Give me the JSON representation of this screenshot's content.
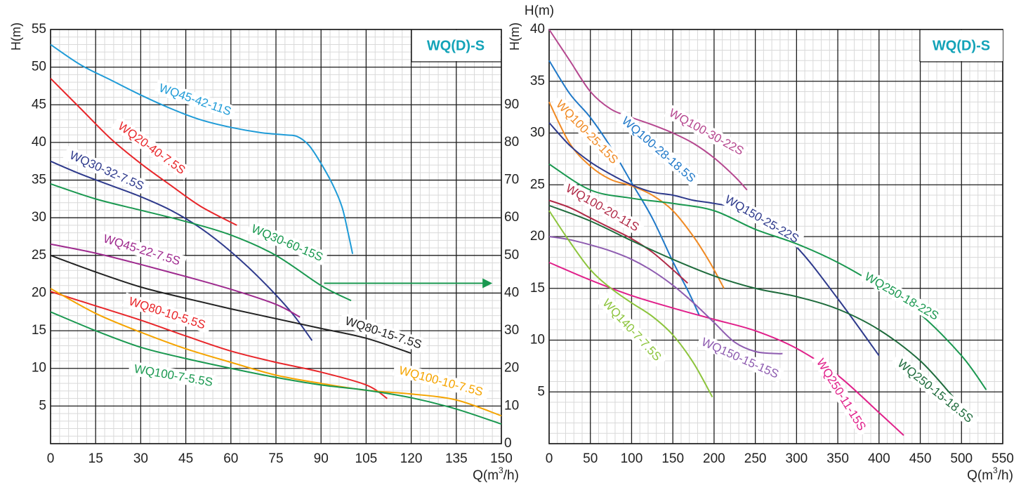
{
  "chart_data": [
    {
      "type": "line",
      "title": "WQ(D)-S",
      "ylabel": "H(m)",
      "xlabel": "Q(m³/h)",
      "xlabel_base": "Q(m",
      "xlabel_sup": "3",
      "xlabel_tail": "/h)",
      "xlim": [
        0,
        150
      ],
      "ylim": [
        0,
        55
      ],
      "x_ticks": [
        0,
        15,
        30,
        45,
        60,
        75,
        90,
        105,
        120,
        135,
        150
      ],
      "y_ticks": [
        5,
        10,
        15,
        20,
        25,
        30,
        35,
        40,
        45,
        50,
        55
      ],
      "secondary_y": {
        "ylim": [
          0,
          110
        ],
        "ticks": [
          0,
          10,
          20,
          30,
          40,
          50,
          60,
          70,
          80,
          90
        ]
      },
      "grid": true,
      "annotation_arrow": {
        "from": [
          91,
          21.3
        ],
        "to": [
          147,
          21.3
        ],
        "color": "#1a9850"
      },
      "series": [
        {
          "name": "WQ45-42-11S",
          "color": "#1f9bd7",
          "x": [
            0,
            10,
            20,
            30,
            40,
            50,
            60,
            70,
            78,
            82,
            86,
            90,
            94,
            97,
            99,
            100.5
          ],
          "y": [
            53,
            50.3,
            48.3,
            46.3,
            44.5,
            43,
            42,
            41.3,
            41,
            40.8,
            39.6,
            37.2,
            34.3,
            31.4,
            28,
            25.2
          ]
        },
        {
          "name": "WQ20-40-7.5S",
          "color": "#e8262a",
          "x": [
            0,
            10,
            20,
            30,
            40,
            50,
            62
          ],
          "y": [
            48.5,
            44.5,
            40.5,
            37.2,
            34.3,
            31.5,
            29
          ]
        },
        {
          "name": "WQ30-32-7.5S",
          "color": "#2e3a8c",
          "x": [
            0,
            10,
            20,
            30,
            40,
            50,
            60,
            70,
            80,
            87
          ],
          "y": [
            37.5,
            35.8,
            34.3,
            32.8,
            31,
            28.6,
            25.5,
            21.8,
            17.5,
            13.7
          ]
        },
        {
          "name": "WQ30-60-15S",
          "color": "#1a9850",
          "x": [
            0,
            15,
            30,
            45,
            60,
            75,
            90,
            100
          ],
          "y": [
            34.5,
            32.5,
            31,
            29.5,
            27.7,
            25,
            21,
            19
          ]
        },
        {
          "name": "WQ45-22-7.5S",
          "color": "#9e2a8e",
          "x": [
            0,
            15,
            30,
            45,
            60,
            75,
            83
          ],
          "y": [
            26.5,
            25.3,
            23.8,
            22.2,
            20.5,
            18.5,
            16.8
          ]
        },
        {
          "name": "WQ80-15-7.5S",
          "color": "#222222",
          "x": [
            0,
            15,
            30,
            45,
            60,
            75,
            90,
            105,
            120
          ],
          "y": [
            25,
            22.8,
            20.8,
            19.3,
            17.9,
            16.6,
            15.3,
            14,
            12
          ]
        },
        {
          "name": "WQ80-10-5.5S",
          "color": "#e8262a",
          "x": [
            0,
            15,
            30,
            45,
            60,
            75,
            90,
            105,
            112
          ],
          "y": [
            20.2,
            18.3,
            16.4,
            14.3,
            12.3,
            10.8,
            9.5,
            7.8,
            6
          ]
        },
        {
          "name": "WQ100-10-7.5S",
          "color": "#f5a400",
          "x": [
            0,
            15,
            30,
            45,
            60,
            75,
            90,
            105,
            120,
            135,
            150
          ],
          "y": [
            20.6,
            17.3,
            14.8,
            12.6,
            10.8,
            9.1,
            8,
            7.1,
            6.6,
            5.8,
            3.7
          ]
        },
        {
          "name": "WQ100-7-5.5S",
          "color": "#1a9850",
          "x": [
            0,
            15,
            30,
            45,
            60,
            75,
            90,
            105,
            120,
            135,
            150
          ],
          "y": [
            17.5,
            15,
            12.8,
            11.3,
            10,
            8.8,
            7.8,
            7.1,
            6.1,
            4.6,
            2.6
          ]
        }
      ]
    },
    {
      "type": "line",
      "title": "WQ(D)-S",
      "ylabel": "H(m)",
      "ylabel_top": "H(m)",
      "xlabel": "Q(m³/h)",
      "xlabel_base": "Q(m",
      "xlabel_sup": "3",
      "xlabel_tail": "/h)",
      "xlim": [
        0,
        550
      ],
      "ylim": [
        0,
        40
      ],
      "x_ticks": [
        0,
        50,
        100,
        150,
        200,
        250,
        300,
        350,
        400,
        450,
        500,
        550
      ],
      "y_ticks": [
        5,
        10,
        15,
        20,
        25,
        30,
        35,
        40
      ],
      "grid": true,
      "series": [
        {
          "name": "WQ100-30-22S",
          "color": "#b5478f",
          "x": [
            0,
            25,
            50,
            75,
            100,
            125,
            150,
            175,
            200,
            225,
            240
          ],
          "y": [
            40,
            37,
            34,
            32.3,
            31.5,
            30.8,
            30,
            29,
            27.6,
            25.8,
            24.5
          ]
        },
        {
          "name": "WQ100-28-18.5S",
          "color": "#1f78c8",
          "x": [
            0,
            25,
            50,
            75,
            100,
            125,
            150,
            170,
            182
          ],
          "y": [
            37,
            33.8,
            31.5,
            28.6,
            25.2,
            21.8,
            17.6,
            14.5,
            12.4
          ]
        },
        {
          "name": "WQ100-25-15S",
          "color": "#f08a24",
          "x": [
            0,
            25,
            50,
            75,
            100,
            125,
            150,
            175,
            195,
            212
          ],
          "y": [
            33,
            29,
            26.8,
            25.5,
            24.9,
            24,
            22.5,
            20,
            17.5,
            15
          ]
        },
        {
          "name": "WQ150-25-22S",
          "color": "#2e3a8c",
          "x": [
            0,
            25,
            50,
            75,
            100,
            125,
            150,
            175,
            200,
            250,
            300,
            350,
            400
          ],
          "y": [
            31,
            28.8,
            27.2,
            26,
            25,
            24.3,
            24,
            23.5,
            23.2,
            22.3,
            19,
            14,
            8.5
          ]
        },
        {
          "name": "WQ100-20-11S",
          "color": "#b02a47",
          "x": [
            0,
            25,
            50,
            75,
            100,
            125,
            150,
            168
          ],
          "y": [
            23.5,
            22.8,
            21.8,
            20.8,
            19.8,
            18.5,
            16.8,
            15.5
          ]
        },
        {
          "name": "WQ250-18-22S",
          "color": "#1a9850",
          "x": [
            0,
            50,
            100,
            150,
            200,
            250,
            300,
            350,
            400,
            450,
            500,
            530
          ],
          "y": [
            27,
            24.5,
            23.7,
            23.2,
            22.5,
            20.7,
            19.3,
            17.5,
            15.2,
            12.5,
            8.5,
            5.2
          ]
        },
        {
          "name": "WQ250-15-18.5S",
          "color": "#1e6b3c",
          "x": [
            0,
            50,
            100,
            150,
            200,
            250,
            300,
            350,
            400,
            450,
            490
          ],
          "y": [
            23,
            21.5,
            19.6,
            17.8,
            16.2,
            15,
            14.2,
            13,
            11,
            8,
            4.5
          ]
        },
        {
          "name": "WQ250-11-15S",
          "color": "#e0208a",
          "x": [
            0,
            50,
            100,
            150,
            200,
            250,
            300,
            350,
            400,
            430
          ],
          "y": [
            17.5,
            15.8,
            14.3,
            13.1,
            12,
            10.9,
            9.2,
            6.6,
            3,
            0.8
          ]
        },
        {
          "name": "WQ150-15-15S",
          "color": "#8e5cb0",
          "x": [
            0,
            25,
            50,
            75,
            100,
            125,
            150,
            175,
            200,
            225,
            250,
            275,
            283
          ],
          "y": [
            20,
            19.7,
            19.2,
            18.6,
            17.8,
            16.7,
            15.3,
            13.6,
            11.7,
            9.8,
            8.9,
            8.7,
            8.7
          ]
        },
        {
          "name": "WQ140-7-7.5S",
          "color": "#8cc43c",
          "x": [
            0,
            25,
            50,
            75,
            100,
            125,
            150,
            175,
            198
          ],
          "y": [
            22.5,
            19.5,
            16.8,
            15,
            13.6,
            12.3,
            10.5,
            7.8,
            4.5
          ]
        }
      ]
    }
  ]
}
